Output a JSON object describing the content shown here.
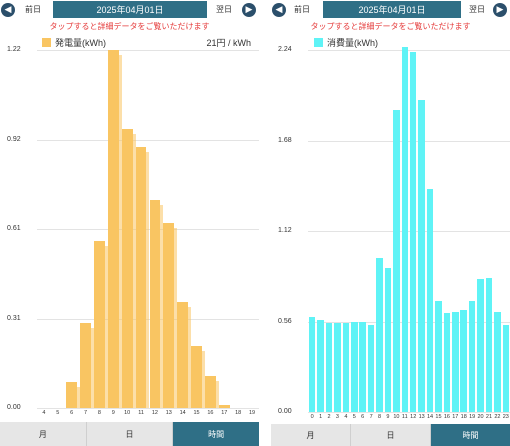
{
  "left": {
    "prev_label": "前日",
    "next_label": "翌日",
    "date": "2025年04月01日",
    "hint": "タップすると詳細データをご覧いただけます",
    "legend": "発電量(kWh)",
    "price": "21円 / kWh",
    "bar_color": "#f9c562",
    "tabs": [
      {
        "label": "月"
      },
      {
        "label": "日"
      },
      {
        "label": "時間"
      }
    ],
    "active_tab": 2
  },
  "right": {
    "prev_label": "前日",
    "next_label": "翌日",
    "date": "2025年04月01日",
    "hint": "タップすると詳細データをご覧いただけます",
    "legend": "消費量(kWh)",
    "bar_color": "#5ff3f6",
    "tabs": [
      {
        "label": "月"
      },
      {
        "label": "日"
      },
      {
        "label": "時間"
      }
    ],
    "active_tab": 2
  },
  "chart_data": [
    {
      "type": "bar",
      "series": [
        {
          "name": "発電量(kWh)",
          "values": [
            0,
            0,
            0.09,
            0.29,
            0.57,
            1.22,
            0.95,
            0.89,
            0.71,
            0.63,
            0.36,
            0.21,
            0.11,
            0.01,
            0,
            0
          ]
        }
      ],
      "categories": [
        "4",
        "5",
        "6",
        "7",
        "8",
        "9",
        "10",
        "11",
        "12",
        "13",
        "14",
        "15",
        "16",
        "17",
        "18",
        "19"
      ],
      "yticks": [
        "0.00",
        "0.31",
        "0.61",
        "0.92",
        "1.22"
      ],
      "ylim": [
        0,
        1.22
      ],
      "grid": true
    },
    {
      "type": "bar",
      "series": [
        {
          "name": "消費量(kWh)",
          "values": [
            0.59,
            0.57,
            0.55,
            0.55,
            0.55,
            0.56,
            0.56,
            0.54,
            0.95,
            0.89,
            1.87,
            2.26,
            2.23,
            1.93,
            1.38,
            0.69,
            0.61,
            0.62,
            0.63,
            0.69,
            0.82,
            0.83,
            0.62,
            0.54
          ]
        }
      ],
      "categories": [
        "0",
        "1",
        "2",
        "3",
        "4",
        "5",
        "6",
        "7",
        "8",
        "9",
        "10",
        "11",
        "12",
        "13",
        "14",
        "15",
        "16",
        "17",
        "18",
        "19",
        "20",
        "21",
        "22",
        "23"
      ],
      "yticks": [
        "0.00",
        "0.56",
        "1.12",
        "1.68",
        "2.24"
      ],
      "ylim": [
        0,
        2.24
      ],
      "grid": true
    }
  ]
}
